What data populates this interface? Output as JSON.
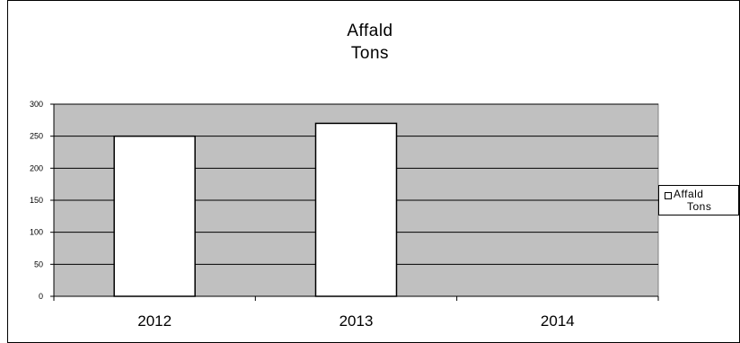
{
  "chart_data": {
    "type": "bar",
    "title": "Affald",
    "subtitle": "Tons",
    "categories": [
      "2012",
      "2013",
      "2014"
    ],
    "series": [
      {
        "name": "Affald Tons",
        "values": [
          250,
          270,
          null
        ]
      }
    ],
    "ylim": [
      0,
      300
    ],
    "yticks": [
      0,
      50,
      100,
      150,
      200,
      250,
      300
    ],
    "grid": true,
    "legend_position": "right",
    "colors": {
      "plot_background": "#c0c0c0",
      "bar_fill": "#ffffff",
      "bar_stroke": "#000000",
      "gridline": "#000000"
    },
    "legend": {
      "line1": "Affald",
      "line2": "Tons"
    }
  }
}
